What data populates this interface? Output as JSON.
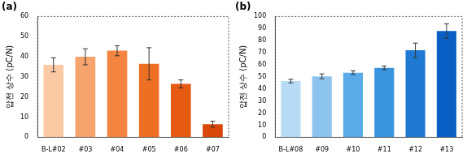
{
  "chart_data": [
    {
      "type": "bar",
      "title": "(a)",
      "y_label": "압전 상수 (pC/N)",
      "categories": [
        "B-L#02",
        "#03",
        "#04",
        "#05",
        "#06",
        "#07"
      ],
      "values": [
        36,
        40,
        43,
        36.5,
        26.5,
        6.5
      ],
      "errors": [
        3.5,
        4,
        2.5,
        8,
        2,
        1.5
      ],
      "colors": [
        "#fbc9a4",
        "#f7a36e",
        "#f48540",
        "#ef6f22",
        "#e55b12",
        "#d9480a"
      ],
      "ylim": [
        0,
        60
      ],
      "yticks": [
        0,
        10,
        20,
        30,
        40,
        50,
        60
      ],
      "grid": false
    },
    {
      "type": "bar",
      "title": "(b)",
      "y_label": "압전 상수 (pC/N)",
      "categories": [
        "B-L#08",
        "#09",
        "#10",
        "#11",
        "#12",
        "#13"
      ],
      "values": [
        46.5,
        50.5,
        53.5,
        57.5,
        72,
        88
      ],
      "errors": [
        1.5,
        2,
        1.5,
        1.5,
        6,
        6
      ],
      "colors": [
        "#b8dbf5",
        "#8cc4ee",
        "#5aabe8",
        "#3a93dd",
        "#1f78d1",
        "#0a5fc4"
      ],
      "ylim": [
        0,
        100
      ],
      "yticks": [
        0,
        10,
        20,
        30,
        40,
        50,
        60,
        70,
        80,
        90,
        100
      ],
      "grid": false
    }
  ]
}
